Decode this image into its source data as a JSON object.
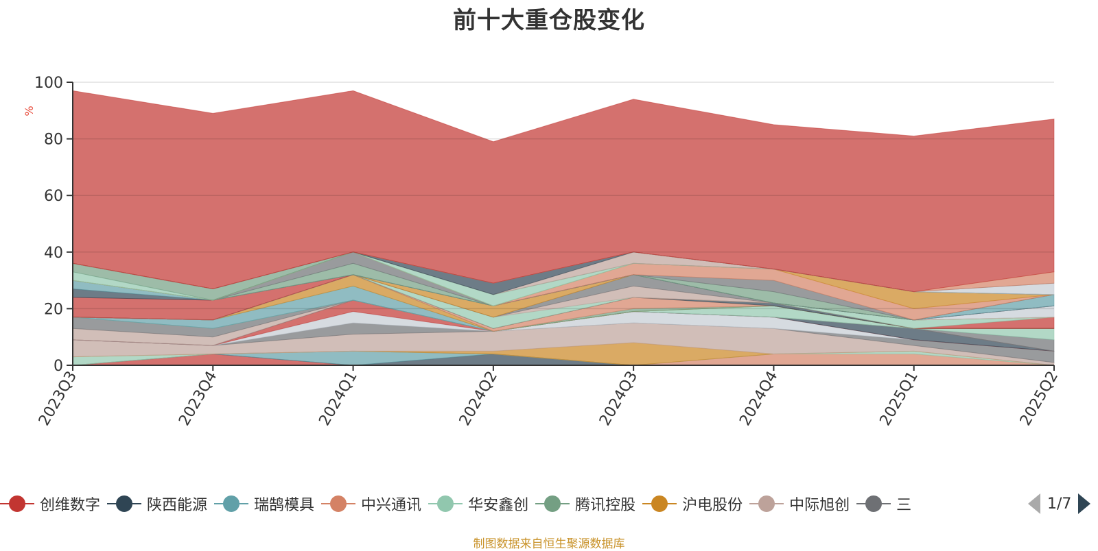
{
  "title": "前十大重仓股变化",
  "source_note": "制图数据来自恒生聚源数据库",
  "legend": {
    "page_text": "1/7",
    "items": [
      {
        "label": "创维数字",
        "color": "#c23531"
      },
      {
        "label": "陕西能源",
        "color": "#2f4554"
      },
      {
        "label": "瑞鹄模具",
        "color": "#61a0a8"
      },
      {
        "label": "中兴通讯",
        "color": "#d48265"
      },
      {
        "label": "华安鑫创",
        "color": "#91c7ae"
      },
      {
        "label": "腾讯控股",
        "color": "#749f83"
      },
      {
        "label": "沪电股份",
        "color": "#ca8622"
      },
      {
        "label": "中际旭创",
        "color": "#bda29a"
      },
      {
        "label": "三",
        "color": "#6e7074"
      }
    ]
  },
  "chart_data": {
    "type": "area",
    "stacked": true,
    "ylabel": "%",
    "ylim": [
      0,
      100
    ],
    "yticks": [
      0,
      20,
      40,
      60,
      80,
      100
    ],
    "categories": [
      "2023Q3",
      "2023Q4",
      "2024Q1",
      "2024Q2",
      "2024Q3",
      "2024Q4",
      "2025Q1",
      "2025Q2"
    ],
    "series": [
      {
        "color": "#c23531",
        "values": [
          0,
          4,
          0,
          0,
          0,
          0,
          0,
          0
        ]
      },
      {
        "color": "#2f4554",
        "values": [
          0,
          0,
          0,
          4,
          0,
          0,
          0,
          0
        ]
      },
      {
        "color": "#61a0a8",
        "values": [
          0,
          0,
          5,
          0,
          0,
          0,
          0,
          0
        ]
      },
      {
        "color": "#d48265",
        "values": [
          0,
          0,
          0,
          0,
          0,
          4,
          4,
          0
        ]
      },
      {
        "color": "#91c7ae",
        "values": [
          3,
          0,
          0,
          0,
          0,
          0,
          1,
          0
        ]
      },
      {
        "color": "#ca8622",
        "values": [
          0,
          0,
          0,
          1,
          8,
          0,
          0,
          0
        ]
      },
      {
        "color": "#bda29a",
        "values": [
          6,
          3,
          6,
          7,
          7,
          9,
          2,
          1
        ]
      },
      {
        "color": "#6e7074",
        "values": [
          0,
          0,
          4,
          0,
          0,
          0,
          2,
          4
        ]
      },
      {
        "color": "#c4ccd3",
        "values": [
          0,
          0,
          4,
          0,
          4,
          4,
          0,
          0
        ]
      },
      {
        "color": "#c23531",
        "values": [
          0,
          0,
          4,
          0,
          0,
          0,
          0,
          0
        ]
      },
      {
        "color": "#2f4554",
        "values": [
          0,
          0,
          0,
          0,
          0,
          0,
          4,
          0
        ]
      },
      {
        "color": "#bda29a",
        "values": [
          4,
          3,
          0,
          0,
          0,
          0,
          0,
          0
        ]
      },
      {
        "color": "#6e7074",
        "values": [
          4,
          3,
          0,
          0,
          0,
          0,
          0,
          4
        ]
      },
      {
        "color": "#91c7ae",
        "values": [
          0,
          0,
          0,
          0,
          0,
          4,
          0,
          4
        ]
      },
      {
        "color": "#61a0a8",
        "values": [
          0,
          3,
          5,
          0,
          0,
          0,
          0,
          0
        ]
      },
      {
        "color": "#ca8622",
        "values": [
          0,
          0,
          4,
          0,
          0,
          0,
          0,
          0
        ]
      },
      {
        "color": "#749f83",
        "values": [
          0,
          0,
          0,
          0,
          1,
          0,
          0,
          0
        ]
      },
      {
        "color": "#d48265",
        "values": [
          0,
          0,
          0,
          1,
          4,
          0,
          0,
          0
        ]
      },
      {
        "color": "#2f4554",
        "values": [
          0,
          0,
          0,
          0,
          0,
          1,
          0,
          0
        ]
      },
      {
        "color": "#c23531",
        "values": [
          0,
          0,
          0,
          0,
          0,
          0,
          0,
          4
        ]
      },
      {
        "color": "#91c7ae",
        "values": [
          0,
          0,
          0,
          4,
          0,
          0,
          3,
          0
        ]
      },
      {
        "color": "#bda29a",
        "values": [
          0,
          0,
          0,
          0,
          4,
          0,
          0,
          0
        ]
      },
      {
        "color": "#6e7074",
        "values": [
          0,
          0,
          0,
          0,
          4,
          0,
          0,
          0
        ]
      },
      {
        "color": "#ca8622",
        "values": [
          0,
          0,
          0,
          4,
          0,
          0,
          0,
          0
        ]
      },
      {
        "color": "#c4ccd3",
        "values": [
          0,
          0,
          0,
          0,
          0,
          0,
          0,
          4
        ]
      },
      {
        "color": "#61a0a8",
        "values": [
          0,
          0,
          0,
          0,
          0,
          0,
          0,
          0
        ]
      },
      {
        "color": "#c23531",
        "values": [
          7,
          7,
          0,
          0,
          0,
          0,
          0,
          0
        ]
      },
      {
        "color": "#2f4554",
        "values": [
          3,
          0,
          0,
          0,
          0,
          0,
          0,
          0
        ]
      },
      {
        "color": "#61a0a8",
        "values": [
          3,
          0,
          0,
          0,
          0,
          0,
          0,
          4
        ]
      },
      {
        "color": "#749f83",
        "values": [
          0,
          0,
          4,
          0,
          0,
          4,
          0,
          0
        ]
      },
      {
        "color": "#6e7074",
        "values": [
          0,
          0,
          4,
          0,
          0,
          4,
          0,
          0
        ]
      },
      {
        "color": "#d48265",
        "values": [
          0,
          0,
          0,
          0,
          4,
          4,
          4,
          0
        ]
      },
      {
        "color": "#ca8622",
        "values": [
          0,
          0,
          0,
          0,
          0,
          0,
          6,
          0
        ]
      },
      {
        "color": "#91c7ae",
        "values": [
          0,
          0,
          0,
          0,
          0,
          0,
          0,
          0
        ]
      },
      {
        "color": "#91c7ae",
        "values": [
          3,
          0,
          0,
          4,
          0,
          0,
          0,
          0
        ]
      },
      {
        "color": "#749f83",
        "values": [
          3,
          4,
          0,
          0,
          0,
          0,
          0,
          0
        ]
      },
      {
        "color": "#bda29a",
        "values": [
          0,
          0,
          0,
          0,
          4,
          0,
          0,
          0
        ]
      },
      {
        "color": "#2f4554",
        "values": [
          0,
          0,
          0,
          4,
          0,
          0,
          0,
          0
        ]
      },
      {
        "color": "#c4ccd3",
        "values": [
          0,
          0,
          0,
          0,
          0,
          0,
          0,
          4
        ]
      },
      {
        "color": "#6e7074",
        "values": [
          0,
          0,
          0,
          0,
          0,
          0,
          0,
          0
        ]
      },
      {
        "color": "#d48265",
        "values": [
          0,
          0,
          0,
          0,
          0,
          0,
          0,
          4
        ]
      },
      {
        "color": "#c23531",
        "values": [
          61,
          62,
          57,
          50,
          54,
          51,
          55,
          54
        ]
      }
    ]
  }
}
